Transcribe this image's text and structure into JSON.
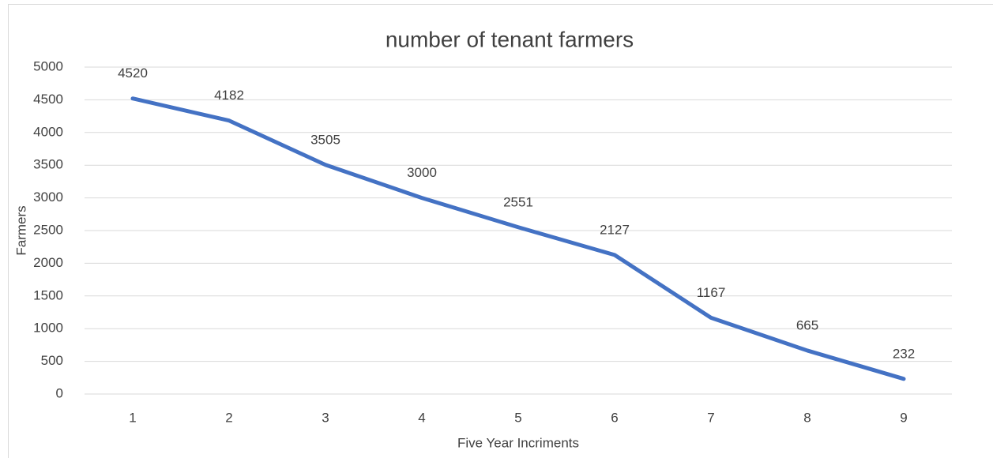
{
  "chart_data": {
    "type": "line",
    "title": "number of tenant farmers",
    "x_label": "Five Year Incriments",
    "y_label": "Farmers",
    "categories": [
      "1",
      "2",
      "3",
      "4",
      "5",
      "6",
      "7",
      "8",
      "9"
    ],
    "values": [
      4520,
      4182,
      3505,
      3000,
      2551,
      2127,
      1167,
      665,
      232
    ],
    "color": "#4472c4",
    "ylim": [
      0,
      5000
    ],
    "yticks": [
      0,
      500,
      1000,
      1500,
      2000,
      2500,
      3000,
      3500,
      4000,
      4500,
      5000
    ],
    "grid": true
  }
}
